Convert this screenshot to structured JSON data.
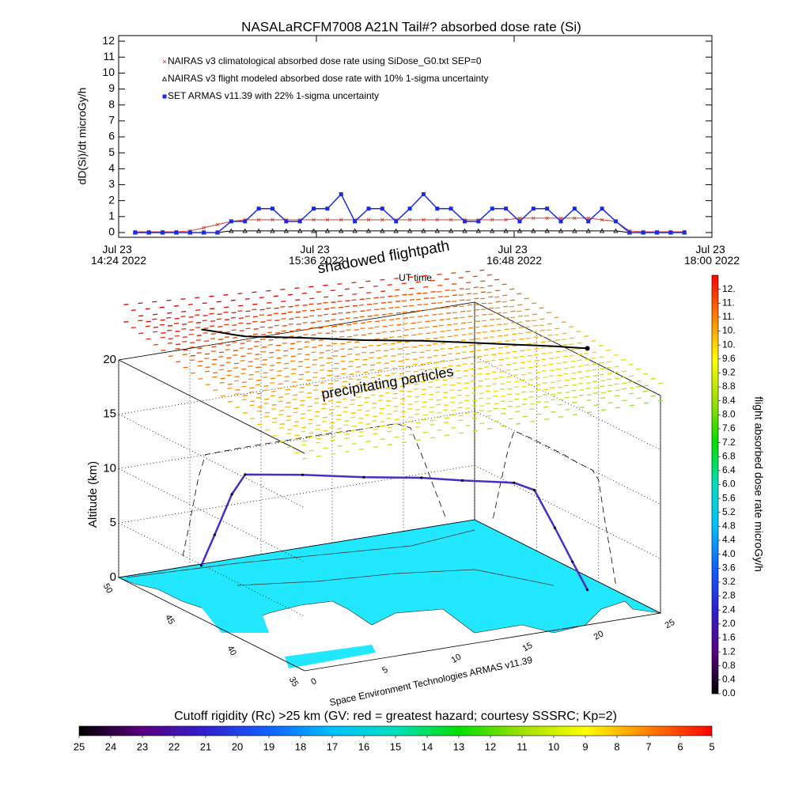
{
  "chart_data": [
    {
      "type": "line",
      "title": "NASALaRCFM7008  A21N Tail#? absorbed dose rate (Si)",
      "y_label": "dD(Si)/dt microGy/h",
      "x_label": "UT time",
      "x": [
        "14:30",
        "14:35",
        "14:40",
        "14:45",
        "14:50",
        "14:55",
        "15:00",
        "15:05",
        "15:10",
        "15:15",
        "15:20",
        "15:25",
        "15:30",
        "15:35",
        "15:40",
        "15:45",
        "15:50",
        "15:55",
        "16:00",
        "16:05",
        "16:10",
        "16:15",
        "16:20",
        "16:25",
        "16:30",
        "16:35",
        "16:40",
        "16:45",
        "16:50",
        "16:55",
        "17:00",
        "17:05",
        "17:10",
        "17:15",
        "17:20",
        "17:25",
        "17:30",
        "17:35",
        "17:40",
        "17:45",
        "17:50"
      ],
      "xlim": [
        "14:24",
        "18:00"
      ],
      "xticks": [
        {
          "value": "14:24",
          "label": "Jul 23 14:24 2022"
        },
        {
          "value": "15:36",
          "label": "Jul 23 15:36 2022"
        },
        {
          "value": "16:48",
          "label": "Jul 23 16:48 2022"
        },
        {
          "value": "18:00",
          "label": "Jul 23 18:00 2022"
        }
      ],
      "ylim": [
        -0.3,
        12.35
      ],
      "yticks": [
        0,
        1,
        2,
        3,
        4,
        5,
        6,
        7,
        8,
        9,
        10,
        11,
        12
      ],
      "series": [
        {
          "name": "NAIRAS v3 climatological absorbed dose rate using SiDose_G0.txt SEP=0",
          "color": "#d04030",
          "marker": "x",
          "values": [
            0.05,
            0.05,
            0.05,
            0.05,
            0.1,
            0.3,
            0.5,
            0.7,
            0.8,
            0.8,
            0.8,
            0.8,
            0.8,
            0.8,
            0.8,
            0.8,
            0.8,
            0.8,
            0.8,
            0.8,
            0.8,
            0.8,
            0.8,
            0.8,
            0.8,
            0.8,
            0.8,
            0.8,
            0.9,
            0.9,
            0.9,
            0.9,
            0.9,
            0.9,
            0.8,
            0.7,
            0.1,
            0.05,
            0.05,
            0.05,
            0.05
          ]
        },
        {
          "name": "NAIRAS v3 flight modeled absorbed dose rate with 10% 1-sigma uncertainty",
          "color": "#000000",
          "marker": "triangle",
          "values": [
            0,
            0,
            0,
            0,
            0,
            0,
            0,
            0.1,
            0.1,
            0.1,
            0.1,
            0.1,
            0.1,
            0.1,
            0.1,
            0.1,
            0.1,
            0.1,
            0.1,
            0.1,
            0.1,
            0.1,
            0.1,
            0.1,
            0.1,
            0.1,
            0.1,
            0.1,
            0.1,
            0.1,
            0.1,
            0.1,
            0.1,
            0.1,
            0.1,
            0.1,
            0,
            0,
            0,
            0,
            0
          ]
        },
        {
          "name": "SET ARMAS v11.39 with 22% 1-sigma uncertainty",
          "color": "#1a2be8",
          "marker": "square",
          "values": [
            0,
            0,
            0,
            0,
            0,
            0,
            0,
            0.7,
            0.7,
            1.5,
            1.5,
            0.7,
            0.7,
            1.5,
            1.5,
            2.4,
            0.7,
            1.5,
            1.5,
            0.7,
            1.5,
            2.4,
            1.5,
            1.5,
            0.7,
            0.7,
            1.5,
            1.5,
            0.7,
            1.5,
            1.5,
            0.7,
            1.5,
            0.7,
            1.5,
            0.7,
            0,
            0,
            0,
            0,
            0
          ]
        }
      ]
    },
    {
      "type": "path3d",
      "z_label": "Altitude (km)",
      "annotations": [
        "shadowed flightpath",
        "precipitating particles",
        "Space Environment Technologies ARMAS v11.39"
      ],
      "color": "#4a2cc8",
      "x": [
        4.5,
        5,
        5.6,
        6.1,
        9,
        12,
        15,
        17,
        19.5,
        20.5,
        21.5,
        22.3,
        23
      ],
      "y": [
        48.5,
        48,
        47.3,
        46.8,
        45.5,
        44,
        42.8,
        41.8,
        40.5,
        40,
        39.5,
        39,
        38.6
      ],
      "z": [
        1,
        4,
        8,
        10,
        10.1,
        10.1,
        10.1,
        10,
        10,
        9.4,
        6,
        3,
        0.5
      ],
      "shadow_altitude": 22.7,
      "xlim": [
        0,
        25
      ],
      "xticks": [
        0,
        5,
        10,
        15,
        20,
        25
      ],
      "ylim": [
        35,
        50
      ],
      "yticks": [
        35,
        40,
        45,
        50
      ],
      "zlim": [
        0,
        20
      ],
      "zticks": [
        0,
        5,
        10,
        15,
        20
      ]
    },
    {
      "type": "colorbar",
      "orientation": "vertical",
      "label": "flight absorbed dose rate microGy/h",
      "lim": [
        0,
        12
      ],
      "colormap": [
        "#000000",
        "#5a0080",
        "#3020d0",
        "#1060ff",
        "#00c0ff",
        "#00e0c0",
        "#00e000",
        "#a0e000",
        "#ffff00",
        "#ff8000",
        "#ff0000"
      ],
      "ticks": [
        {
          "value": 0,
          "label": "0.0"
        },
        0.4,
        0.8,
        1.2,
        1.6,
        {
          "value": 2,
          "label": "2.0"
        },
        2.4,
        2.8,
        3.2,
        3.6,
        {
          "value": 4,
          "label": "4.0"
        },
        4.4,
        4.8,
        5.2,
        5.6,
        {
          "value": 6,
          "label": "6.0"
        },
        6.4,
        6.8,
        7.2,
        7.6,
        {
          "value": 8,
          "label": "8.0"
        },
        8.4,
        8.8,
        9.2,
        9.6,
        {
          "value": 10,
          "label": "10."
        },
        {
          "value": 10.4,
          "label": "10."
        },
        {
          "value": 10.8,
          "label": "11."
        },
        {
          "value": 11.2,
          "label": "11."
        },
        {
          "value": 11.6,
          "label": "12."
        }
      ]
    },
    {
      "type": "colorbar",
      "orientation": "horizontal",
      "label": "Cutoff rigidity (Rc) >25 km (GV: red = greatest hazard; courtesy SSSRC; Kp=2)",
      "lim": [
        25,
        5
      ],
      "colormap": [
        "#000000",
        "#5a0080",
        "#3020d0",
        "#1060ff",
        "#00c0ff",
        "#00e0c0",
        "#00e000",
        "#a0e000",
        "#ffff00",
        "#ff8000",
        "#ff0000"
      ],
      "ticks": [
        25,
        24,
        23,
        22,
        21,
        20,
        19,
        18,
        17,
        16,
        15,
        14,
        13,
        12,
        11,
        10,
        9,
        8,
        7,
        6,
        5
      ]
    }
  ]
}
